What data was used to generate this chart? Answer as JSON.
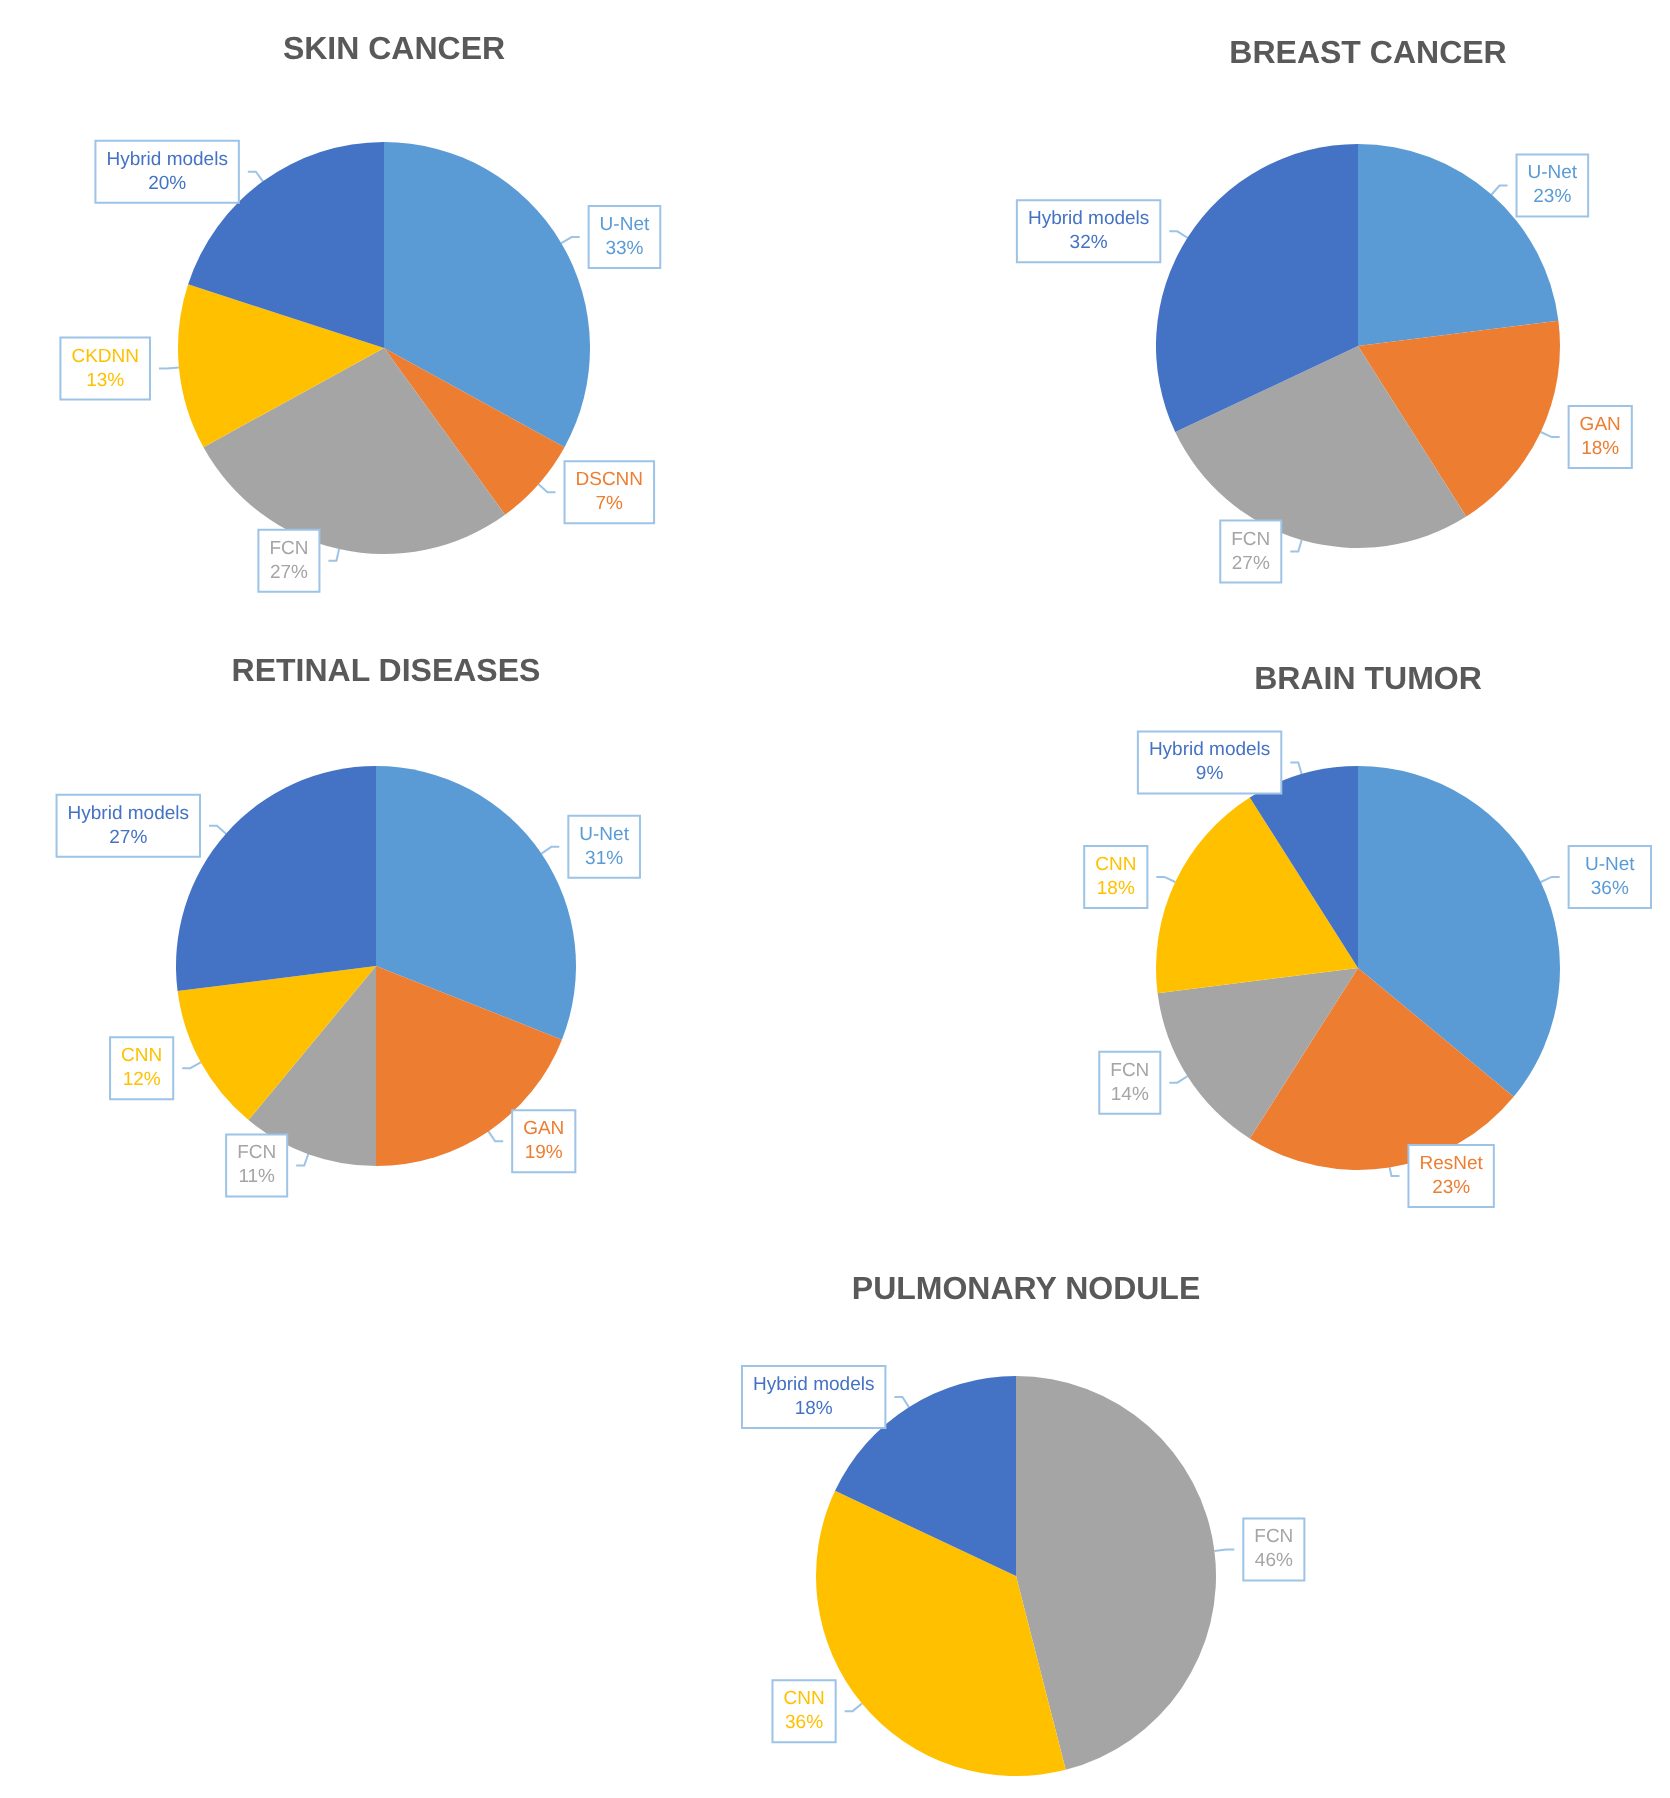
{
  "chart_data": [
    {
      "type": "pie",
      "title": "SKIN CANCER",
      "categories": [
        "U-Net",
        "DSCNN",
        "FCN",
        "CKDNN",
        "Hybrid models"
      ],
      "values": [
        33,
        7,
        27,
        13,
        20
      ],
      "value_labels": [
        "33%",
        "7%",
        "27%",
        "13%",
        "20%"
      ],
      "colors": [
        "#5b9bd5",
        "#ed7d31",
        "#a5a5a5",
        "#ffc000",
        "#4472c4"
      ]
    },
    {
      "type": "pie",
      "title": "BREAST CANCER",
      "categories": [
        "U-Net",
        "GAN",
        "FCN",
        "Hybrid models"
      ],
      "values": [
        23,
        18,
        27,
        32
      ],
      "value_labels": [
        "23%",
        "18%",
        "27%",
        "32%"
      ],
      "colors": [
        "#5b9bd5",
        "#ed7d31",
        "#a5a5a5",
        "#4472c4"
      ]
    },
    {
      "type": "pie",
      "title": "RETINAL DISEASES",
      "categories": [
        "U-Net",
        "GAN",
        "FCN",
        "CNN",
        "Hybrid models"
      ],
      "values": [
        31,
        19,
        11,
        12,
        27
      ],
      "value_labels": [
        "31%",
        "19%",
        "11%",
        "12%",
        "27%"
      ],
      "colors": [
        "#5b9bd5",
        "#ed7d31",
        "#a5a5a5",
        "#ffc000",
        "#4472c4"
      ]
    },
    {
      "type": "pie",
      "title": "BRAIN TUMOR",
      "categories": [
        "U-Net",
        "ResNet",
        "FCN",
        "CNN",
        "Hybrid models"
      ],
      "values": [
        36,
        23,
        14,
        18,
        9
      ],
      "value_labels": [
        "36%",
        "23%",
        "14%",
        "18%",
        "9%"
      ],
      "colors": [
        "#5b9bd5",
        "#ed7d31",
        "#a5a5a5",
        "#ffc000",
        "#4472c4"
      ]
    },
    {
      "type": "pie",
      "title": "PULMONARY NODULE",
      "categories": [
        "FCN",
        "CNN",
        "Hybrid models"
      ],
      "values": [
        46,
        36,
        18
      ],
      "value_labels": [
        "46%",
        "36%",
        "18%"
      ],
      "colors": [
        "#a5a5a5",
        "#ffc000",
        "#4472c4"
      ]
    }
  ]
}
